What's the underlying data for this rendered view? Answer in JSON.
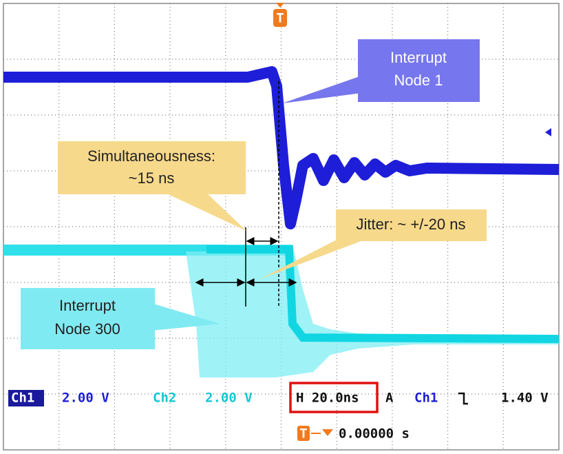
{
  "trigger_marker": "T",
  "callouts": {
    "node1": [
      "Interrupt",
      "Node 1"
    ],
    "simultaneousness": [
      "Simultaneousness:",
      "~15 ns"
    ],
    "jitter": [
      "Jitter: ~ +/-20 ns"
    ],
    "node300": [
      "Interrupt",
      "Node 300"
    ]
  },
  "status": {
    "ch1_label": "Ch1",
    "ch1_scale": "2.00 V",
    "ch2_label": "Ch2",
    "ch2_scale": "2.00 V",
    "horizontal": "H 20.0ns",
    "trigger_mode": "A",
    "trigger_source": "Ch1",
    "trigger_level": "1.40 V",
    "trigger_offset": "0.00000 s"
  }
}
